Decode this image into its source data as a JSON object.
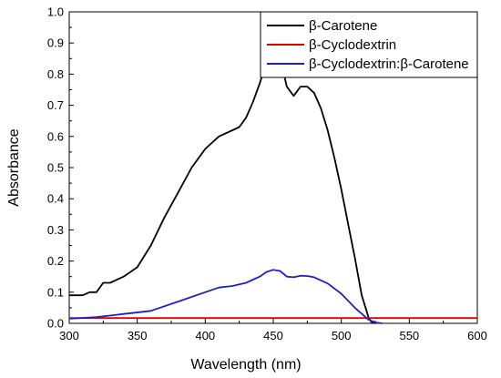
{
  "chart_data": {
    "type": "line",
    "title": "",
    "xlabel": "Wavelength (nm)",
    "ylabel": "Absorbance",
    "xlim": [
      300,
      600
    ],
    "ylim": [
      0.0,
      1.0
    ],
    "xticks": [
      300,
      350,
      400,
      450,
      500,
      550,
      600
    ],
    "xtick_labels": [
      "300",
      "350",
      "400",
      "450",
      "500",
      "550",
      "600"
    ],
    "yticks": [
      0.0,
      0.1,
      0.2,
      0.3,
      0.4,
      0.5,
      0.6,
      0.7,
      0.8,
      0.9,
      1.0
    ],
    "ytick_labels": [
      "0.0",
      "0.1",
      "0.2",
      "0.3",
      "0.4",
      "0.5",
      "0.6",
      "0.7",
      "0.8",
      "0.9",
      "1.0"
    ],
    "grid": false,
    "legend_position": "top-right",
    "series": [
      {
        "name": "β-Carotene",
        "color": "#000000",
        "x": [
          300,
          310,
          315,
          320,
          325,
          330,
          340,
          350,
          360,
          370,
          380,
          390,
          400,
          405,
          410,
          420,
          425,
          430,
          435,
          440,
          445,
          450,
          455,
          460,
          465,
          470,
          475,
          480,
          485,
          490,
          495,
          500,
          505,
          510,
          515,
          520,
          522,
          525
        ],
        "y": [
          0.09,
          0.09,
          0.1,
          0.1,
          0.13,
          0.13,
          0.15,
          0.18,
          0.25,
          0.34,
          0.42,
          0.5,
          0.56,
          0.58,
          0.6,
          0.62,
          0.63,
          0.66,
          0.71,
          0.77,
          0.84,
          0.865,
          0.85,
          0.76,
          0.73,
          0.76,
          0.76,
          0.74,
          0.69,
          0.62,
          0.53,
          0.43,
          0.32,
          0.21,
          0.09,
          0.02,
          0.005,
          0.0
        ]
      },
      {
        "name": "β-Cyclodextrin",
        "color": "#e00000",
        "x": [
          300,
          600
        ],
        "y": [
          0.017,
          0.017
        ]
      },
      {
        "name": "β-Cyclodextrin:β-Carotene",
        "color": "#1f1fc8",
        "x": [
          300,
          320,
          340,
          360,
          380,
          400,
          410,
          420,
          430,
          440,
          445,
          450,
          455,
          460,
          465,
          470,
          475,
          480,
          490,
          500,
          510,
          520,
          525,
          530
        ],
        "y": [
          0.015,
          0.02,
          0.03,
          0.04,
          0.07,
          0.1,
          0.115,
          0.12,
          0.13,
          0.15,
          0.165,
          0.172,
          0.168,
          0.15,
          0.148,
          0.153,
          0.152,
          0.148,
          0.128,
          0.095,
          0.05,
          0.012,
          0.003,
          0.0
        ]
      }
    ]
  }
}
